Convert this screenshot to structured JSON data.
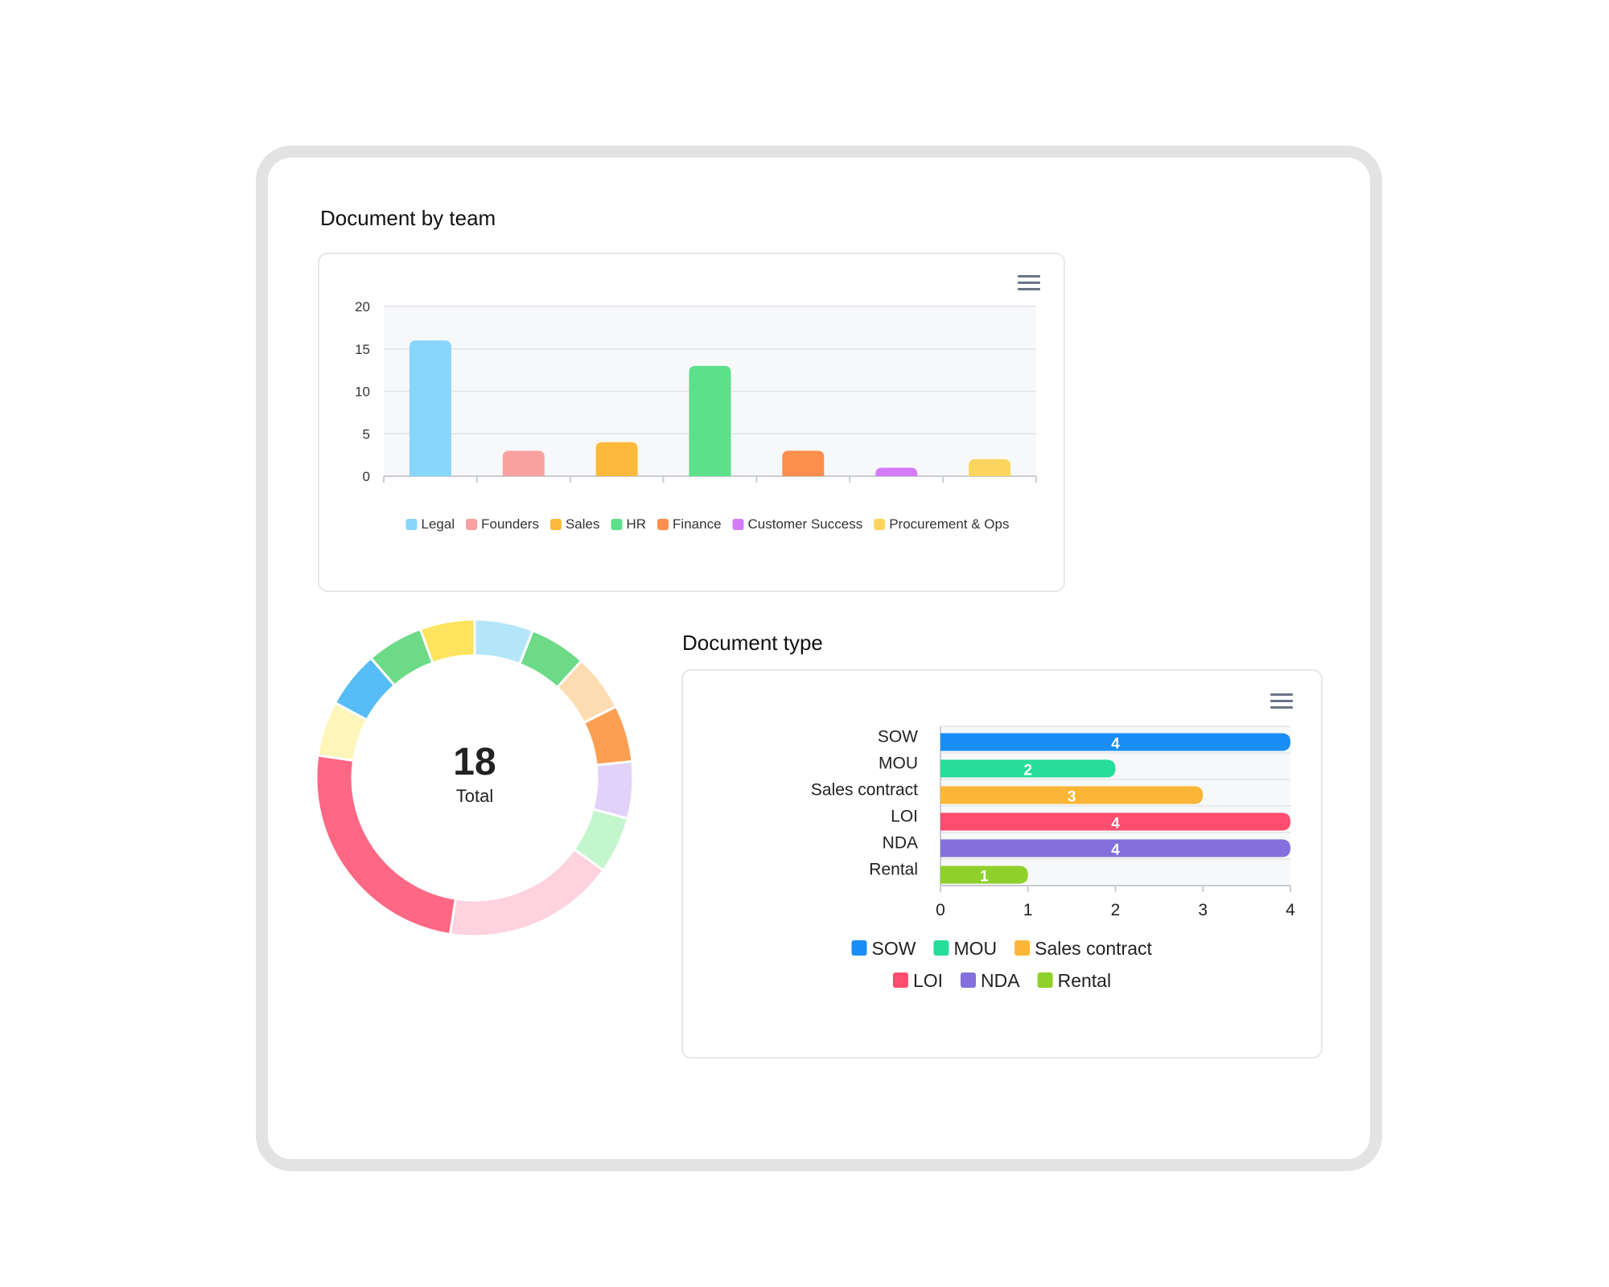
{
  "team_section": {
    "title": "Document by team",
    "menu_icon": "hamburger-menu-icon"
  },
  "type_section": {
    "title": "Document type",
    "menu_icon": "hamburger-menu-icon"
  },
  "donut": {
    "total_value": "18",
    "total_label": "Total"
  },
  "chart_data": [
    {
      "type": "bar",
      "title": "Document by team",
      "categories": [
        "Legal",
        "Founders",
        "Sales",
        "HR",
        "Finance",
        "Customer Success",
        "Procurement & Ops"
      ],
      "values": [
        16,
        3,
        4,
        13,
        3,
        1,
        2
      ],
      "colors": [
        "#88d6fb",
        "#f8a1a1",
        "#fbba3c",
        "#5ce18a",
        "#fd8f4c",
        "#d67bf8",
        "#fcd55f"
      ],
      "ylim": [
        0,
        20
      ],
      "yticks": [
        0,
        5,
        10,
        15,
        20
      ],
      "xlabel": "",
      "ylabel": "",
      "grid": true,
      "legend": "bottom"
    },
    {
      "type": "pie",
      "subtype": "donut",
      "title": "",
      "center_text": "18",
      "center_subtext": "Total",
      "slice_colors": [
        "#b4e6fa",
        "#6cda87",
        "#fedcb2",
        "#fd9f53",
        "#e1d2fa",
        "#c4f6ce",
        "#fed2df",
        "#fe6884",
        "#fef6b8",
        "#56bdf7",
        "#6cda87",
        "#fee45e"
      ],
      "slices": [
        5.8,
        5.6,
        5.6,
        5.6,
        5.6,
        5.6,
        17.0,
        24.0,
        5.4,
        5.6,
        5.6,
        5.4
      ]
    },
    {
      "type": "bar",
      "orientation": "horizontal",
      "title": "Document type",
      "categories": [
        "SOW",
        "MOU",
        "Sales contract",
        "LOI",
        "NDA",
        "Rental"
      ],
      "values": [
        4,
        2,
        3,
        4,
        4,
        1
      ],
      "colors": [
        "#1a8ef5",
        "#28dc9a",
        "#fbb637",
        "#fe4d6e",
        "#8370dc",
        "#8fd12a"
      ],
      "xlim": [
        0,
        4
      ],
      "xticks": [
        0,
        1,
        2,
        3,
        4
      ],
      "data_labels": true,
      "legend": "bottom"
    }
  ]
}
